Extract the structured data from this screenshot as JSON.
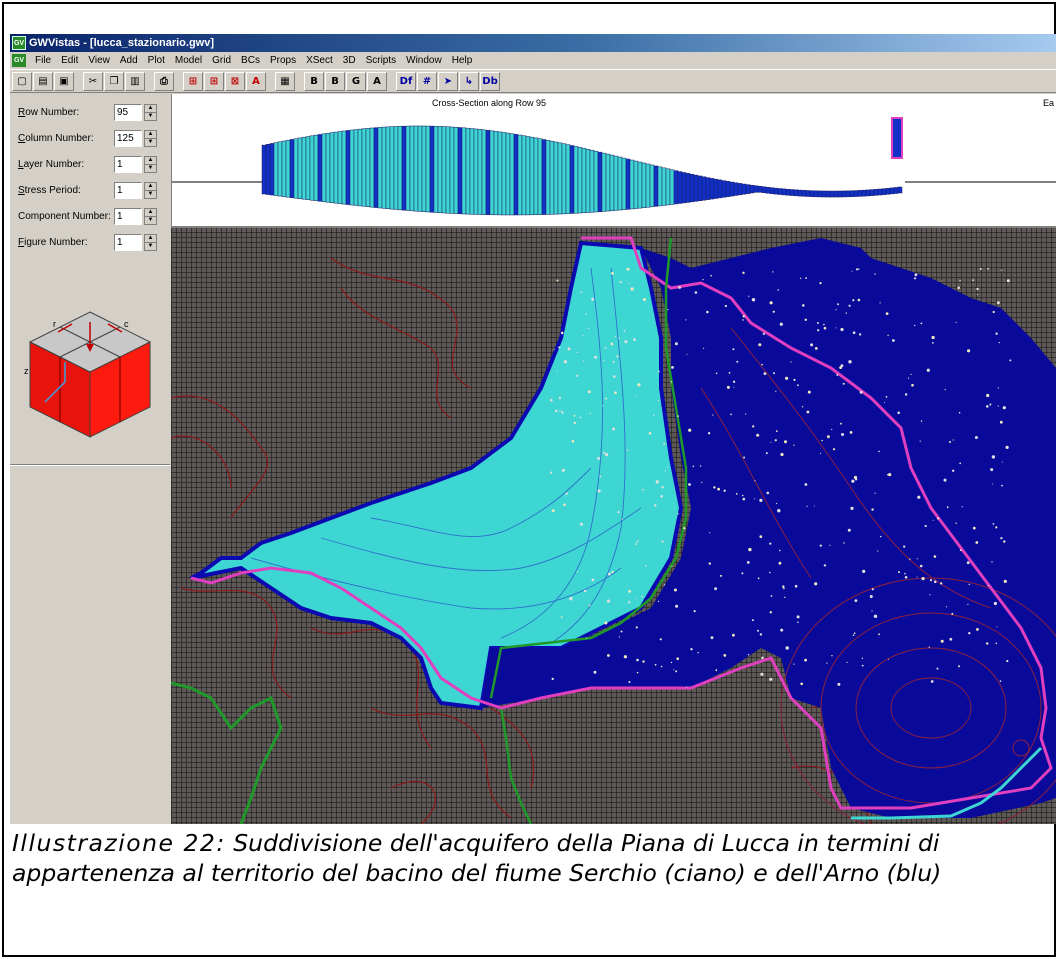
{
  "window": {
    "title": "GWVistas - [lucca_stazionario.gwv]",
    "icon_text": "GV"
  },
  "menu": {
    "icon_text": "GV",
    "items": [
      "File",
      "Edit",
      "View",
      "Add",
      "Plot",
      "Model",
      "Grid",
      "BCs",
      "Props",
      "XSect",
      "3D",
      "Scripts",
      "Window",
      "Help"
    ]
  },
  "toolbar": {
    "buttons": [
      {
        "name": "new-file-icon",
        "glyph": "▢"
      },
      {
        "name": "open-folder-icon",
        "glyph": "▤"
      },
      {
        "name": "save-icon",
        "glyph": "▣"
      },
      {
        "name": "cut-icon",
        "glyph": "✂"
      },
      {
        "name": "copy-icon",
        "glyph": "❐"
      },
      {
        "name": "paste-icon",
        "glyph": "▥"
      },
      {
        "name": "print-icon",
        "glyph": "⎙"
      },
      {
        "name": "grid-view-icon",
        "glyph": "⊞"
      },
      {
        "name": "grid-add-icon",
        "glyph": "⊞"
      },
      {
        "name": "grid-edit-icon",
        "glyph": "⊠"
      },
      {
        "name": "grid-text-icon",
        "glyph": "A"
      },
      {
        "name": "calculator-icon",
        "glyph": "▦"
      },
      {
        "name": "bc-icon",
        "glyph": "B"
      },
      {
        "name": "bc-red-icon",
        "glyph": "B"
      },
      {
        "name": "grid-g-icon",
        "glyph": "G"
      },
      {
        "name": "attribute-icon",
        "glyph": "A"
      },
      {
        "name": "define-icon",
        "glyph": "Df"
      },
      {
        "name": "mesh-icon",
        "glyph": "#"
      },
      {
        "name": "arrow-icon",
        "glyph": "➤"
      },
      {
        "name": "pathline-icon",
        "glyph": "↳"
      },
      {
        "name": "db-icon",
        "glyph": "Db"
      }
    ]
  },
  "fields": [
    {
      "key": "R",
      "rest": "ow Number:",
      "value": "95"
    },
    {
      "key": "C",
      "rest": "olumn Number:",
      "value": "125"
    },
    {
      "key": "L",
      "rest": "ayer Number:",
      "value": "1"
    },
    {
      "key": "S",
      "rest": "tress Period:",
      "value": "1"
    },
    {
      "key": "",
      "rest": "Component Number:",
      "value": "1"
    },
    {
      "key": "F",
      "rest": "igure Number:",
      "value": "1"
    }
  ],
  "cube": {
    "labels": [
      "r",
      "c",
      "z"
    ],
    "face_color": "#ff0000",
    "top_color": "#c0c0c0"
  },
  "cross_section": {
    "title": "Cross-Section along Row  95",
    "right_label": "Ea"
  },
  "colors": {
    "serchio": "#3ed6d3",
    "arno": "#0a0a9a",
    "boundary": "#e040c0",
    "divide": "#1f9a2a",
    "contour": "#8b1a1a"
  },
  "caption": {
    "label": "Illustrazione 22:",
    "text": " Suddivisione dell'acquifero della Piana di Lucca in termini di appartenenza al territorio del bacino del fiume Serchio (ciano) e dell'Arno (blu)"
  }
}
